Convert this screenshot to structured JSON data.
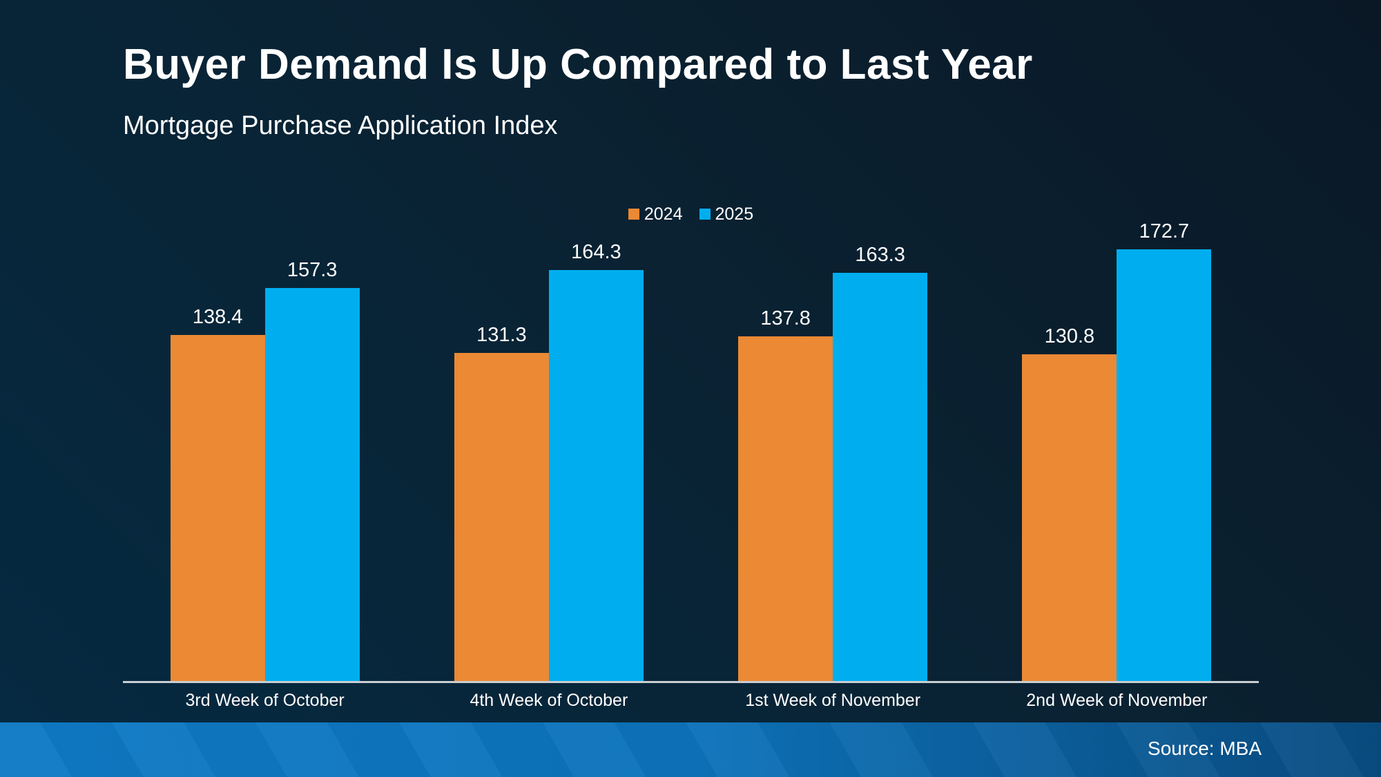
{
  "slide": {
    "title": "Buyer Demand Is Up Compared to Last Year",
    "subtitle": "Mortgage Purchase Application Index",
    "source": "Source: MBA"
  },
  "colors": {
    "series_2024": "#eb8934",
    "series_2025": "#00aeef",
    "background_top": "#0a1826",
    "background_bottom": "#052a42",
    "footer_gradient_left": "#0e7ac5",
    "footer_gradient_right": "#094c80",
    "axis_line": "#c9ced3",
    "text": "#ffffff"
  },
  "chart_data": {
    "type": "bar",
    "title": "Buyer Demand Is Up Compared to Last Year",
    "subtitle": "Mortgage Purchase Application Index",
    "categories": [
      "3rd Week of October",
      "4th Week of October",
      "1st Week of November",
      "2nd Week of November"
    ],
    "series": [
      {
        "name": "2024",
        "color": "#eb8934",
        "values": [
          138.4,
          131.3,
          137.8,
          130.8
        ]
      },
      {
        "name": "2025",
        "color": "#00aeef",
        "values": [
          157.3,
          164.3,
          163.3,
          172.7
        ]
      }
    ],
    "ylim": [
      0,
      180
    ],
    "grid": false,
    "axes_hidden": true,
    "legend_position": "top-center",
    "data_labels": true,
    "source_note": "Source: MBA"
  }
}
